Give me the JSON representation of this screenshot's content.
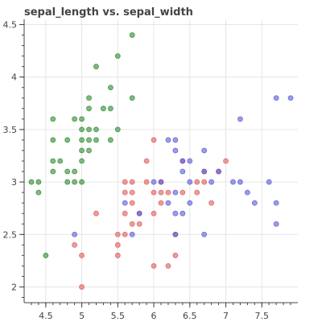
{
  "chart_data": {
    "type": "scatter",
    "title": "sepal_length vs. sepal_width",
    "xlabel": "",
    "ylabel": "",
    "xlim": [
      4.2,
      8.0
    ],
    "ylim": [
      1.85,
      4.55
    ],
    "xticks": [
      "4.5",
      "5",
      "5.5",
      "6",
      "6.5",
      "7",
      "7.5"
    ],
    "yticks": [
      "2",
      "2.5",
      "3",
      "3.5",
      "4",
      "4.5"
    ],
    "grid": true,
    "series": [
      {
        "color": "#2e8b2e",
        "points": [
          [
            4.3,
            3.0
          ],
          [
            4.4,
            3.0
          ],
          [
            4.4,
            2.9
          ],
          [
            4.5,
            2.3
          ],
          [
            4.6,
            3.1
          ],
          [
            4.6,
            3.2
          ],
          [
            4.6,
            3.4
          ],
          [
            4.6,
            3.6
          ],
          [
            4.7,
            3.2
          ],
          [
            4.8,
            3.0
          ],
          [
            4.8,
            3.1
          ],
          [
            4.8,
            3.4
          ],
          [
            4.9,
            3.0
          ],
          [
            4.9,
            3.1
          ],
          [
            4.9,
            3.6
          ],
          [
            5.0,
            3.0
          ],
          [
            5.0,
            3.2
          ],
          [
            5.0,
            3.3
          ],
          [
            5.0,
            3.4
          ],
          [
            5.0,
            3.5
          ],
          [
            5.0,
            3.6
          ],
          [
            5.1,
            3.3
          ],
          [
            5.1,
            3.4
          ],
          [
            5.1,
            3.5
          ],
          [
            5.1,
            3.7
          ],
          [
            5.1,
            3.8
          ],
          [
            5.2,
            3.4
          ],
          [
            5.2,
            3.5
          ],
          [
            5.2,
            4.1
          ],
          [
            5.3,
            3.7
          ],
          [
            5.4,
            3.4
          ],
          [
            5.4,
            3.7
          ],
          [
            5.4,
            3.9
          ],
          [
            5.5,
            3.5
          ],
          [
            5.5,
            4.2
          ],
          [
            5.7,
            3.8
          ],
          [
            5.7,
            4.4
          ]
        ]
      },
      {
        "color": "#e05a5a",
        "points": [
          [
            4.9,
            2.4
          ],
          [
            5.0,
            2.0
          ],
          [
            5.0,
            2.3
          ],
          [
            5.2,
            2.7
          ],
          [
            5.5,
            2.3
          ],
          [
            5.5,
            2.4
          ],
          [
            5.5,
            2.5
          ],
          [
            5.6,
            2.5
          ],
          [
            5.6,
            2.7
          ],
          [
            5.6,
            2.9
          ],
          [
            5.6,
            3.0
          ],
          [
            5.7,
            2.6
          ],
          [
            5.7,
            2.8
          ],
          [
            5.7,
            2.9
          ],
          [
            5.7,
            3.0
          ],
          [
            5.8,
            2.6
          ],
          [
            5.8,
            2.7
          ],
          [
            5.9,
            3.0
          ],
          [
            5.9,
            3.2
          ],
          [
            6.0,
            2.2
          ],
          [
            6.0,
            2.7
          ],
          [
            6.0,
            2.9
          ],
          [
            6.0,
            3.4
          ],
          [
            6.1,
            2.8
          ],
          [
            6.1,
            2.9
          ],
          [
            6.1,
            3.0
          ],
          [
            6.2,
            2.2
          ],
          [
            6.2,
            2.9
          ],
          [
            6.3,
            2.3
          ],
          [
            6.3,
            2.5
          ],
          [
            6.4,
            2.9
          ],
          [
            6.4,
            3.2
          ],
          [
            6.6,
            2.9
          ],
          [
            6.6,
            3.0
          ],
          [
            6.7,
            3.0
          ],
          [
            6.7,
            3.1
          ],
          [
            6.8,
            2.8
          ],
          [
            6.9,
            3.1
          ],
          [
            7.0,
            3.2
          ]
        ]
      },
      {
        "color": "#5a5ad8",
        "points": [
          [
            4.9,
            2.5
          ],
          [
            5.6,
            2.8
          ],
          [
            5.7,
            2.5
          ],
          [
            5.8,
            2.7
          ],
          [
            6.0,
            3.0
          ],
          [
            6.1,
            3.0
          ],
          [
            6.2,
            2.8
          ],
          [
            6.2,
            3.4
          ],
          [
            6.3,
            2.5
          ],
          [
            6.3,
            2.7
          ],
          [
            6.3,
            2.9
          ],
          [
            6.3,
            3.3
          ],
          [
            6.3,
            3.4
          ],
          [
            6.4,
            2.7
          ],
          [
            6.4,
            3.1
          ],
          [
            6.4,
            3.2
          ],
          [
            6.5,
            2.8
          ],
          [
            6.5,
            3.0
          ],
          [
            6.5,
            3.2
          ],
          [
            6.7,
            2.5
          ],
          [
            6.7,
            3.1
          ],
          [
            6.7,
            3.3
          ],
          [
            6.8,
            3.0
          ],
          [
            6.9,
            3.1
          ],
          [
            7.1,
            3.0
          ],
          [
            7.2,
            3.0
          ],
          [
            7.2,
            3.6
          ],
          [
            7.3,
            2.9
          ],
          [
            7.4,
            2.8
          ],
          [
            7.6,
            3.0
          ],
          [
            7.7,
            2.6
          ],
          [
            7.7,
            2.8
          ],
          [
            7.7,
            3.8
          ],
          [
            7.9,
            3.8
          ]
        ]
      }
    ]
  }
}
